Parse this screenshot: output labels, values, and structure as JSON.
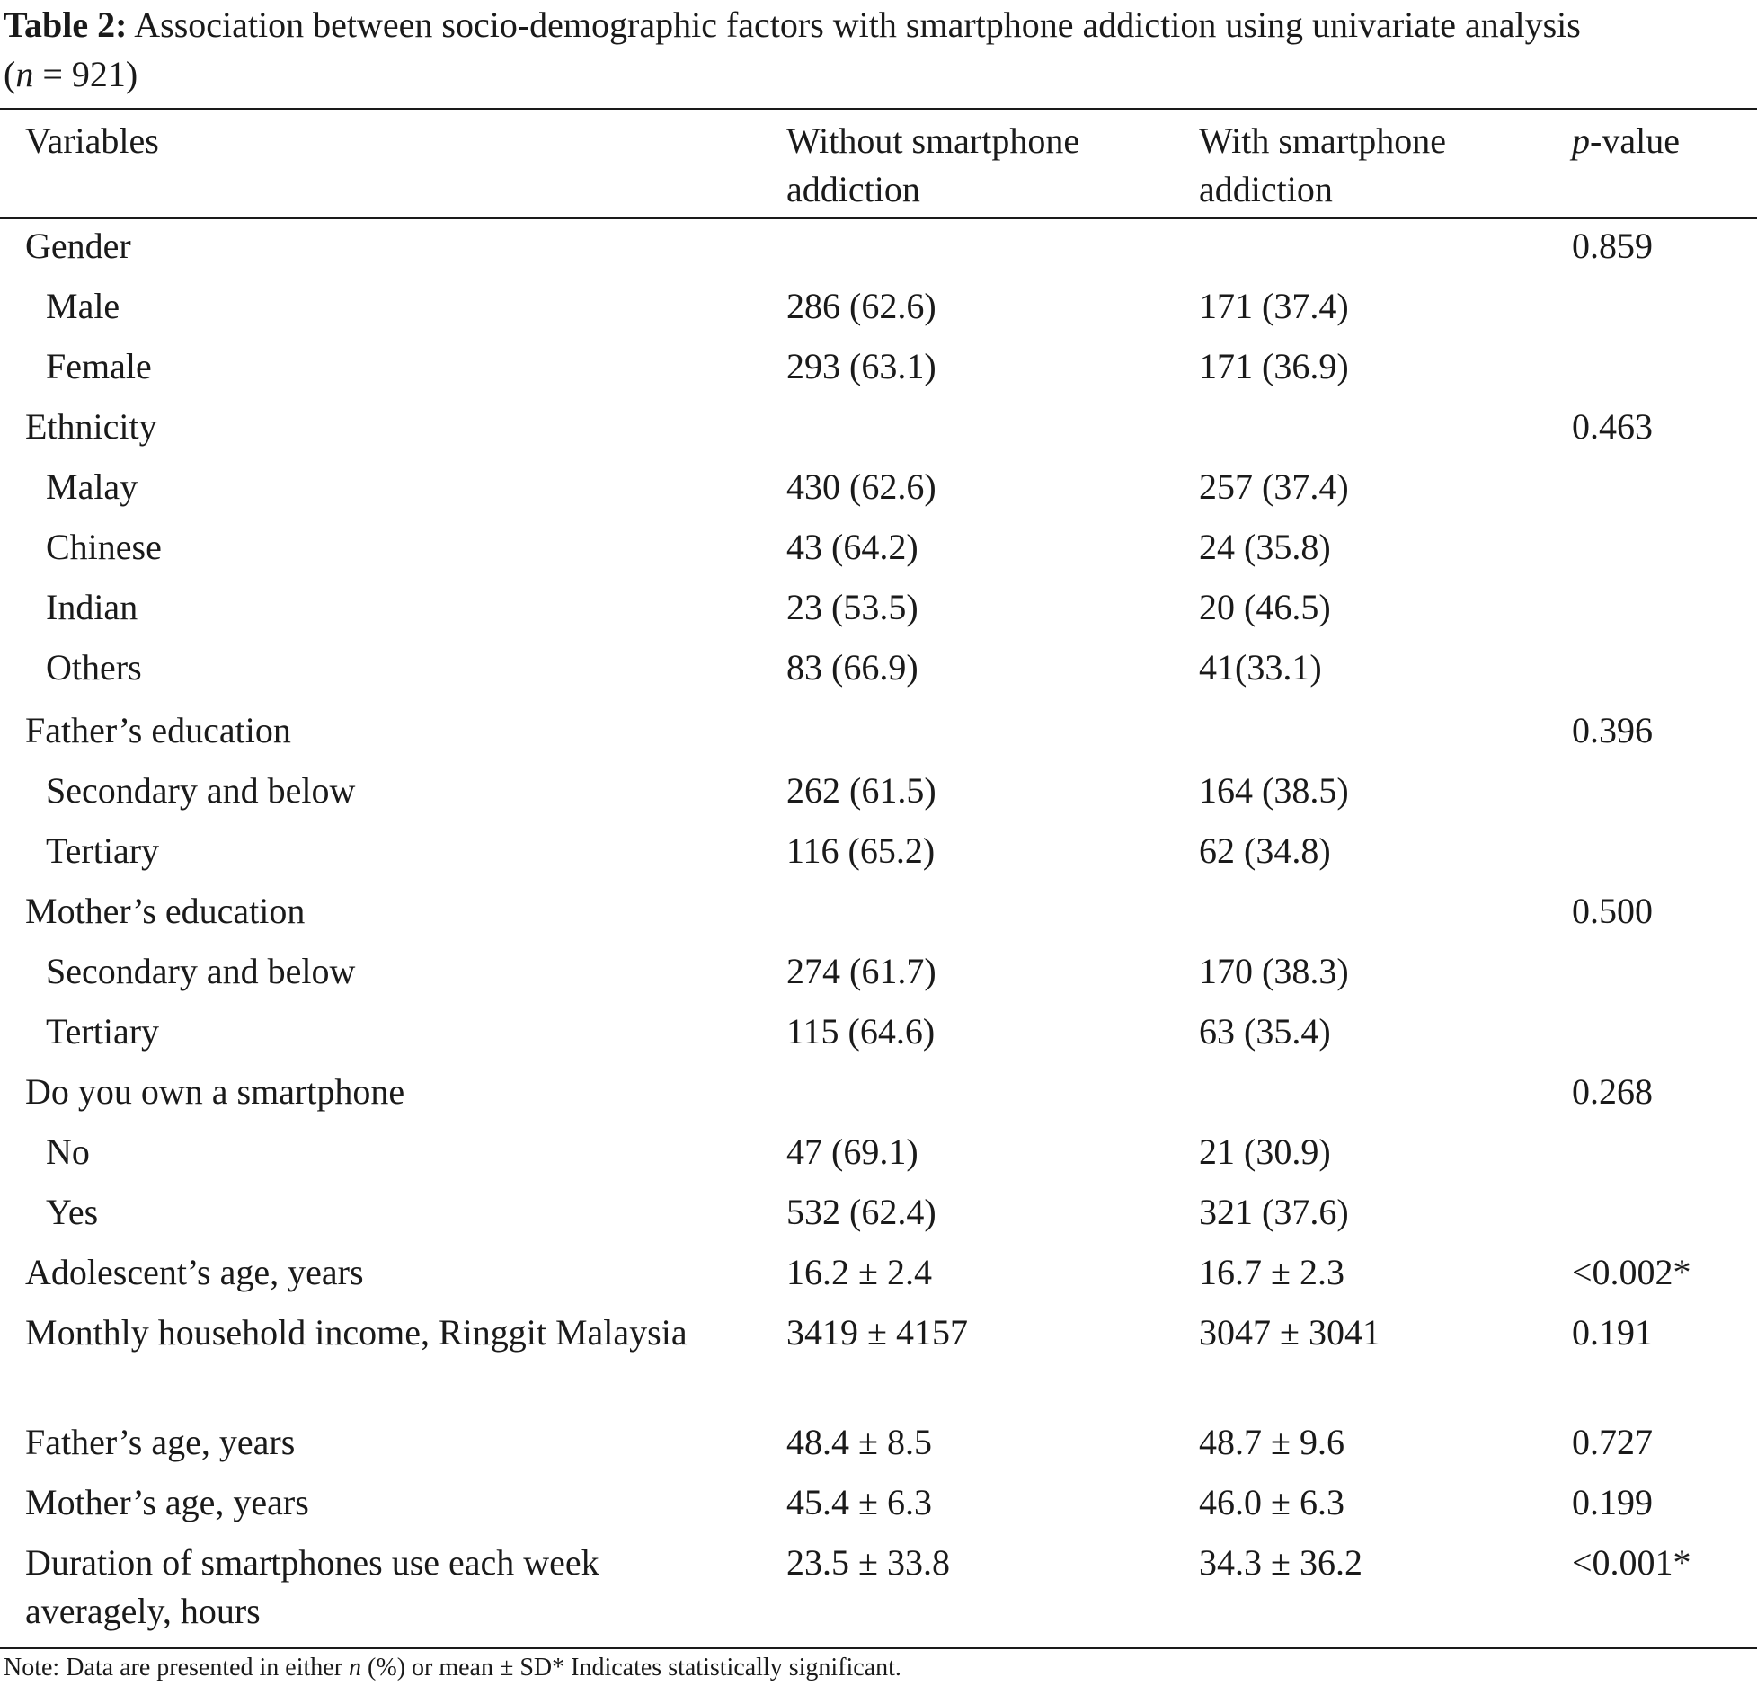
{
  "caption": {
    "label": "Table 2:",
    "text_line1": "Association between socio-demographic factors with smartphone addiction using univariate analysis",
    "text_line2_open": "(",
    "text_line2_n": "n",
    "text_line2_rest": " = 921)"
  },
  "header": {
    "variables": "Variables",
    "without_line1": "Without smartphone",
    "without_line2": "addiction",
    "with_line1": "With smartphone",
    "with_line2": "addiction",
    "p_italic": "p",
    "p_rest": "-value"
  },
  "rows": [
    {
      "variable": "Gender",
      "without": "",
      "with": "",
      "p": "0.859"
    },
    {
      "variable": "Male",
      "without": "286 (62.6)",
      "with": "171 (37.4)",
      "p": ""
    },
    {
      "variable": "Female",
      "without": "293 (63.1)",
      "with": "171 (36.9)",
      "p": ""
    },
    {
      "variable": "Ethnicity",
      "without": "",
      "with": "",
      "p": "0.463"
    },
    {
      "variable": "Malay",
      "without": "430 (62.6)",
      "with": "257 (37.4)",
      "p": ""
    },
    {
      "variable": "Chinese",
      "without": "43 (64.2)",
      "with": "24 (35.8)",
      "p": ""
    },
    {
      "variable": "Indian",
      "without": "23 (53.5)",
      "with": "20 (46.5)",
      "p": ""
    },
    {
      "variable": "Others",
      "without": "83 (66.9)",
      "with": "41(33.1)",
      "p": ""
    },
    {
      "variable": "Father’s education",
      "without": "",
      "with": "",
      "p": "0.396"
    },
    {
      "variable": "Secondary and below",
      "without": "262 (61.5)",
      "with": "164 (38.5)",
      "p": ""
    },
    {
      "variable": "Tertiary",
      "without": "116 (65.2)",
      "with": "62 (34.8)",
      "p": ""
    },
    {
      "variable": "Mother’s education",
      "without": "",
      "with": "",
      "p": "0.500"
    },
    {
      "variable": "Secondary and below",
      "without": "274 (61.7)",
      "with": "170 (38.3)",
      "p": ""
    },
    {
      "variable": "Tertiary",
      "without": "115 (64.6)",
      "with": "63 (35.4)",
      "p": ""
    },
    {
      "variable": "Do you own a smartphone",
      "without": "",
      "with": "",
      "p": "0.268"
    },
    {
      "variable": "No",
      "without": "47 (69.1)",
      "with": "21 (30.9)",
      "p": ""
    },
    {
      "variable": "Yes",
      "without": "532 (62.4)",
      "with": "321 (37.6)",
      "p": ""
    },
    {
      "variable": "Adolescent’s age, years",
      "without": "16.2 ± 2.4",
      "with": "16.7 ± 2.3",
      "p": "<0.002*"
    },
    {
      "variable": "Monthly household income, Ringgit Malaysia",
      "without": "3419 ± 4157",
      "with": "3047 ± 3041",
      "p": "0.191"
    },
    {
      "variable": "Father’s age, years",
      "without": "48.4 ± 8.5",
      "with": "48.7 ± 9.6",
      "p": "0.727"
    },
    {
      "variable": "Mother’s age, years",
      "without": "45.4 ± 6.3",
      "with": "46.0 ± 6.3",
      "p": "0.199"
    },
    {
      "variable": "Duration of smartphones use each week averagely, hours",
      "without": "23.5 ± 33.8",
      "with": "34.3 ± 36.2",
      "p": "<0.001*"
    }
  ],
  "note": {
    "prefix": "Note: Data are presented in either ",
    "n": "n",
    "suffix": " (%) or mean ± SD* Indicates statistically significant."
  }
}
